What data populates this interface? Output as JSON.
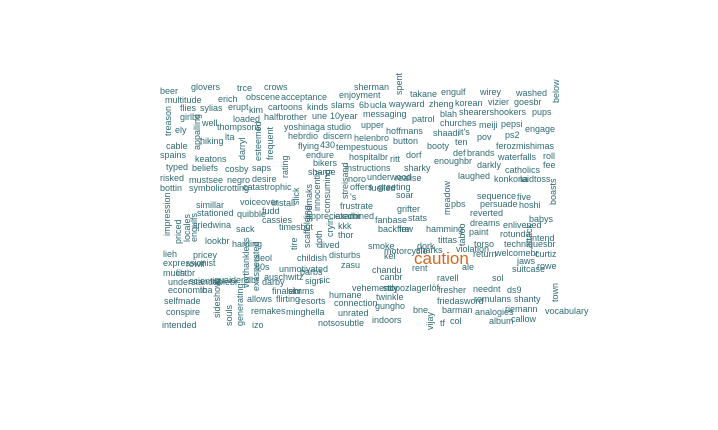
{
  "words": [
    {
      "text": "beer"
    },
    {
      "text": "glovers"
    },
    {
      "text": "trce"
    },
    {
      "text": "crows"
    },
    {
      "text": "sherman"
    },
    {
      "text": "engulf"
    },
    {
      "text": "wirey"
    },
    {
      "text": "washed"
    },
    {
      "text": "multitude"
    },
    {
      "text": "erich"
    },
    {
      "text": "obscene"
    },
    {
      "text": "acceptance"
    },
    {
      "text": "enjoyment"
    },
    {
      "text": "takane"
    },
    {
      "text": "below"
    },
    {
      "text": "flies"
    },
    {
      "text": "sylias"
    },
    {
      "text": "erupt"
    },
    {
      "text": "kim"
    },
    {
      "text": "cartoons"
    },
    {
      "text": "kinds"
    },
    {
      "text": "slams"
    },
    {
      "text": "6b"
    },
    {
      "text": "ucla"
    },
    {
      "text": "wayward"
    },
    {
      "text": "zheng"
    },
    {
      "text": "korean"
    },
    {
      "text": "vizier"
    },
    {
      "text": "goesbr"
    },
    {
      "text": "treason"
    },
    {
      "text": "girlbr"
    },
    {
      "text": "loaded"
    },
    {
      "text": "halfbrother"
    },
    {
      "text": "une"
    },
    {
      "text": "10year"
    },
    {
      "text": "messaging"
    },
    {
      "text": "blah"
    },
    {
      "text": "shearershookers"
    },
    {
      "text": "pups"
    },
    {
      "text": "well"
    },
    {
      "text": "patrol"
    },
    {
      "text": "churches"
    },
    {
      "text": "meiji"
    },
    {
      "text": "pepsi"
    },
    {
      "text": "ely"
    },
    {
      "text": "thompsons"
    },
    {
      "text": "yoshinaga"
    },
    {
      "text": "studio"
    },
    {
      "text": "upper"
    },
    {
      "text": "hoffmans"
    },
    {
      "text": "shaadi"
    },
    {
      "text": "it's"
    },
    {
      "text": "engage"
    },
    {
      "text": "hiking"
    },
    {
      "text": "lta"
    },
    {
      "text": "hebrdio"
    },
    {
      "text": "discern"
    },
    {
      "text": "helenbro"
    },
    {
      "text": "button"
    },
    {
      "text": "pov"
    },
    {
      "text": "ps2"
    },
    {
      "text": "cable"
    },
    {
      "text": "flying"
    },
    {
      "text": "430"
    },
    {
      "text": "tempestuous"
    },
    {
      "text": "booty"
    },
    {
      "text": "ten"
    },
    {
      "text": "ferozmishimas"
    },
    {
      "text": "spains"
    },
    {
      "text": "endure"
    },
    {
      "text": "hospitalbr"
    },
    {
      "text": "ritt"
    },
    {
      "text": "dorf"
    },
    {
      "text": "def"
    },
    {
      "text": "brands"
    },
    {
      "text": "waterfalls"
    },
    {
      "text": "roll"
    },
    {
      "text": "keatons"
    },
    {
      "text": "bikers"
    },
    {
      "text": "enoughbr"
    },
    {
      "text": "darkly"
    },
    {
      "text": "fee"
    },
    {
      "text": "typed"
    },
    {
      "text": "beliefs"
    },
    {
      "text": "cosby"
    },
    {
      "text": "saps"
    },
    {
      "text": "instructions"
    },
    {
      "text": "sharky"
    },
    {
      "text": "catholics"
    },
    {
      "text": "risked"
    },
    {
      "text": "mustsee"
    },
    {
      "text": "negro"
    },
    {
      "text": "desire"
    },
    {
      "text": "sharpe"
    },
    {
      "text": "noro"
    },
    {
      "text": "underwood"
    },
    {
      "text": "realise"
    },
    {
      "text": "laughed"
    },
    {
      "text": "konkona"
    },
    {
      "text": "laidtoss"
    },
    {
      "text": "bottin"
    },
    {
      "text": "symbolic"
    },
    {
      "text": "rotting"
    },
    {
      "text": "catastrophic"
    },
    {
      "text": "offers"
    },
    {
      "text": "fuelled"
    },
    {
      "text": "greeting"
    },
    {
      "text": "soar"
    },
    {
      "text": "sequence"
    },
    {
      "text": "five"
    },
    {
      "text": "'s"
    },
    {
      "text": "pbs"
    },
    {
      "text": "persuade"
    },
    {
      "text": "hoshi"
    },
    {
      "text": "simillar"
    },
    {
      "text": "voiceover"
    },
    {
      "text": "install"
    },
    {
      "text": "frustrate"
    },
    {
      "text": "grifter"
    },
    {
      "text": "stationed"
    },
    {
      "text": "quibble"
    },
    {
      "text": "fudd"
    },
    {
      "text": "appreciatedbr"
    },
    {
      "text": "examined"
    },
    {
      "text": "fanbase"
    },
    {
      "text": "stats"
    },
    {
      "text": "reverted"
    },
    {
      "text": "babys"
    },
    {
      "text": "sriedwina"
    },
    {
      "text": "cassies"
    },
    {
      "text": "dreams"
    },
    {
      "text": "enlivened"
    },
    {
      "text": "sack"
    },
    {
      "text": "timesbut"
    },
    {
      "text": "kkk"
    },
    {
      "text": "backfire"
    },
    {
      "text": "few"
    },
    {
      "text": "hamming"
    },
    {
      "text": "paint"
    },
    {
      "text": "rotunda"
    },
    {
      "text": "thor"
    },
    {
      "text": "intend"
    },
    {
      "text": "lookbr"
    },
    {
      "text": "harding"
    },
    {
      "text": "lived"
    },
    {
      "text": "smoke"
    },
    {
      "text": "dork"
    },
    {
      "text": "tittas"
    },
    {
      "text": "torso"
    },
    {
      "text": "techniquesbr"
    },
    {
      "text": "motorcycle"
    },
    {
      "text": "sharks"
    },
    {
      "text": "violation"
    },
    {
      "text": "lieh"
    },
    {
      "text": "pricey"
    },
    {
      "text": "deol"
    },
    {
      "text": "childish"
    },
    {
      "text": "disturbs"
    },
    {
      "text": "kei"
    },
    {
      "text": "return"
    },
    {
      "text": "welcomebr"
    },
    {
      "text": "curtiz"
    },
    {
      "text": "caution"
    },
    {
      "text": "expressionist"
    },
    {
      "text": "rowlf"
    },
    {
      "text": "80s"
    },
    {
      "text": "zasu"
    },
    {
      "text": "jaws"
    },
    {
      "text": "much"
    },
    {
      "text": "listbr"
    },
    {
      "text": "unmotivated"
    },
    {
      "text": "barbs"
    },
    {
      "text": "chandu"
    },
    {
      "text": "rent"
    },
    {
      "text": "ale"
    },
    {
      "text": "suitcase"
    },
    {
      "text": "rowe"
    },
    {
      "text": "understandablebr"
    },
    {
      "text": "scientist"
    },
    {
      "text": "quaidendbr"
    },
    {
      "text": "auschwitz"
    },
    {
      "text": "darby"
    },
    {
      "text": "sign"
    },
    {
      "text": "sic"
    },
    {
      "text": "canbr"
    },
    {
      "text": "ravell"
    },
    {
      "text": "sol"
    },
    {
      "text": "economic"
    },
    {
      "text": "tha"
    },
    {
      "text": "finalebr"
    },
    {
      "text": "simms"
    },
    {
      "text": "vehemently"
    },
    {
      "text": "stopozlagerlöf"
    },
    {
      "text": "fresher"
    },
    {
      "text": "neednt"
    },
    {
      "text": "ds9"
    },
    {
      "text": "humane"
    },
    {
      "text": "twinkle"
    },
    {
      "text": "selfmade"
    },
    {
      "text": "allows"
    },
    {
      "text": "flirting"
    },
    {
      "text": "resorts"
    },
    {
      "text": "connection"
    },
    {
      "text": "friedasword"
    },
    {
      "text": "romulans"
    },
    {
      "text": "shanty"
    },
    {
      "text": "town"
    },
    {
      "text": "gungho"
    },
    {
      "text": "conspire"
    },
    {
      "text": "remakes"
    },
    {
      "text": "minghella"
    },
    {
      "text": "unrated"
    },
    {
      "text": "bne"
    },
    {
      "text": "barman"
    },
    {
      "text": "analogies"
    },
    {
      "text": "riemann"
    },
    {
      "text": "vocabulary"
    },
    {
      "text": "indoors"
    },
    {
      "text": "col"
    },
    {
      "text": "album"
    },
    {
      "text": "callow"
    },
    {
      "text": "intended"
    },
    {
      "text": "izo"
    },
    {
      "text": "notsosubtle"
    },
    {
      "text": "sideshow"
    },
    {
      "text": "souls"
    },
    {
      "text": "generating"
    },
    {
      "text": "vorthankless"
    },
    {
      "text": "exasperated"
    },
    {
      "text": "appalling"
    },
    {
      "text": "darryl"
    },
    {
      "text": "esteemed"
    },
    {
      "text": "frequent"
    },
    {
      "text": "rating"
    },
    {
      "text": "slick"
    },
    {
      "text": "impression"
    },
    {
      "text": "priced"
    },
    {
      "text": "locales"
    },
    {
      "text": "engulfs"
    },
    {
      "text": "innocently"
    },
    {
      "text": "consuming"
    },
    {
      "text": "streisand"
    },
    {
      "text": "siodmaks"
    },
    {
      "text": "scaffolding"
    },
    {
      "text": "tire"
    },
    {
      "text": "doth"
    },
    {
      "text": "cryin"
    },
    {
      "text": "meadow"
    },
    {
      "text": "taboo"
    },
    {
      "text": "attack"
    },
    {
      "text": "boasts"
    },
    {
      "text": "vijay"
    },
    {
      "text": "tf"
    },
    {
      "text": "spent"
    },
    {
      "text": "kristin"
    },
    {
      "text": "catherine"
    },
    {
      "text": "pipe"
    },
    {
      "text": "management"
    },
    {
      "text": "br"
    },
    {
      "text": "io"
    }
  ]
}
